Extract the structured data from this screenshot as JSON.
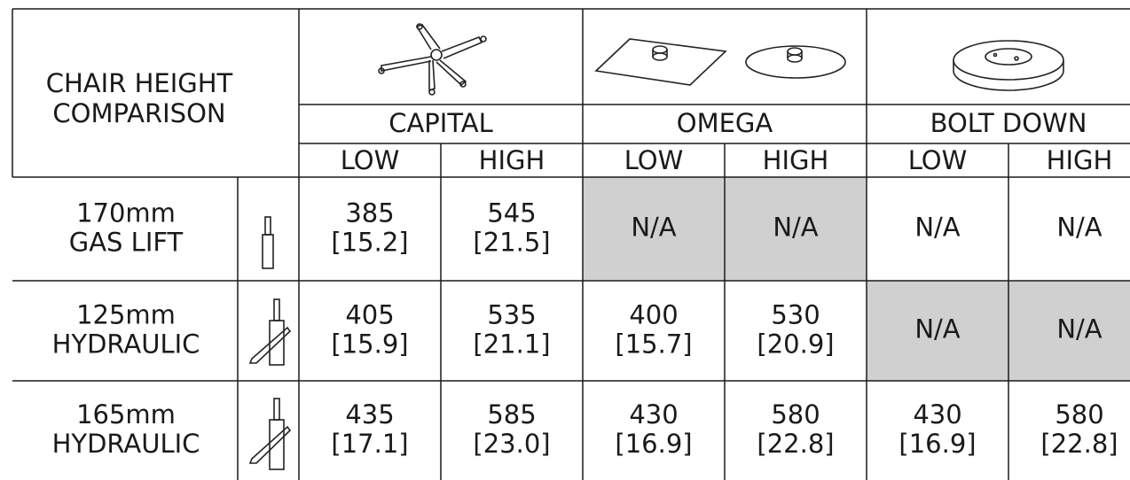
{
  "header": {
    "title": [
      "CHAIR HEIGHT",
      "COMPARISON"
    ]
  },
  "groups": [
    {
      "name": "CAPITAL",
      "columns": [
        "LOW",
        "HIGH"
      ]
    },
    {
      "name": "OMEGA",
      "columns": [
        "LOW",
        "HIGH"
      ]
    },
    {
      "name": "BOLT DOWN",
      "columns": [
        "LOW",
        "HIGH"
      ]
    }
  ],
  "rows": [
    {
      "label": [
        "170mm",
        "GAS LIFT"
      ],
      "cells": [
        [
          "385",
          "[15.2]"
        ],
        [
          "545",
          "[21.5]"
        ],
        [
          "N/A"
        ],
        [
          "N/A"
        ],
        [
          "N/A"
        ],
        [
          "N/A"
        ]
      ]
    },
    {
      "label": [
        "125mm",
        "HYDRAULIC"
      ],
      "cells": [
        [
          "405",
          "[15.9]"
        ],
        [
          "535",
          "[21.1]"
        ],
        [
          "400",
          "[15.7]"
        ],
        [
          "530",
          "[20.9]"
        ],
        [
          "N/A"
        ],
        [
          "N/A"
        ]
      ]
    },
    {
      "label": [
        "165mm",
        "HYDRAULIC"
      ],
      "cells": [
        [
          "435",
          "[17.1]"
        ],
        [
          "585",
          "[23.0]"
        ],
        [
          "430",
          "[16.9]"
        ],
        [
          "580",
          "[22.8]"
        ],
        [
          "430",
          "[16.9]"
        ],
        [
          "580",
          "[22.8]"
        ]
      ]
    }
  ]
}
